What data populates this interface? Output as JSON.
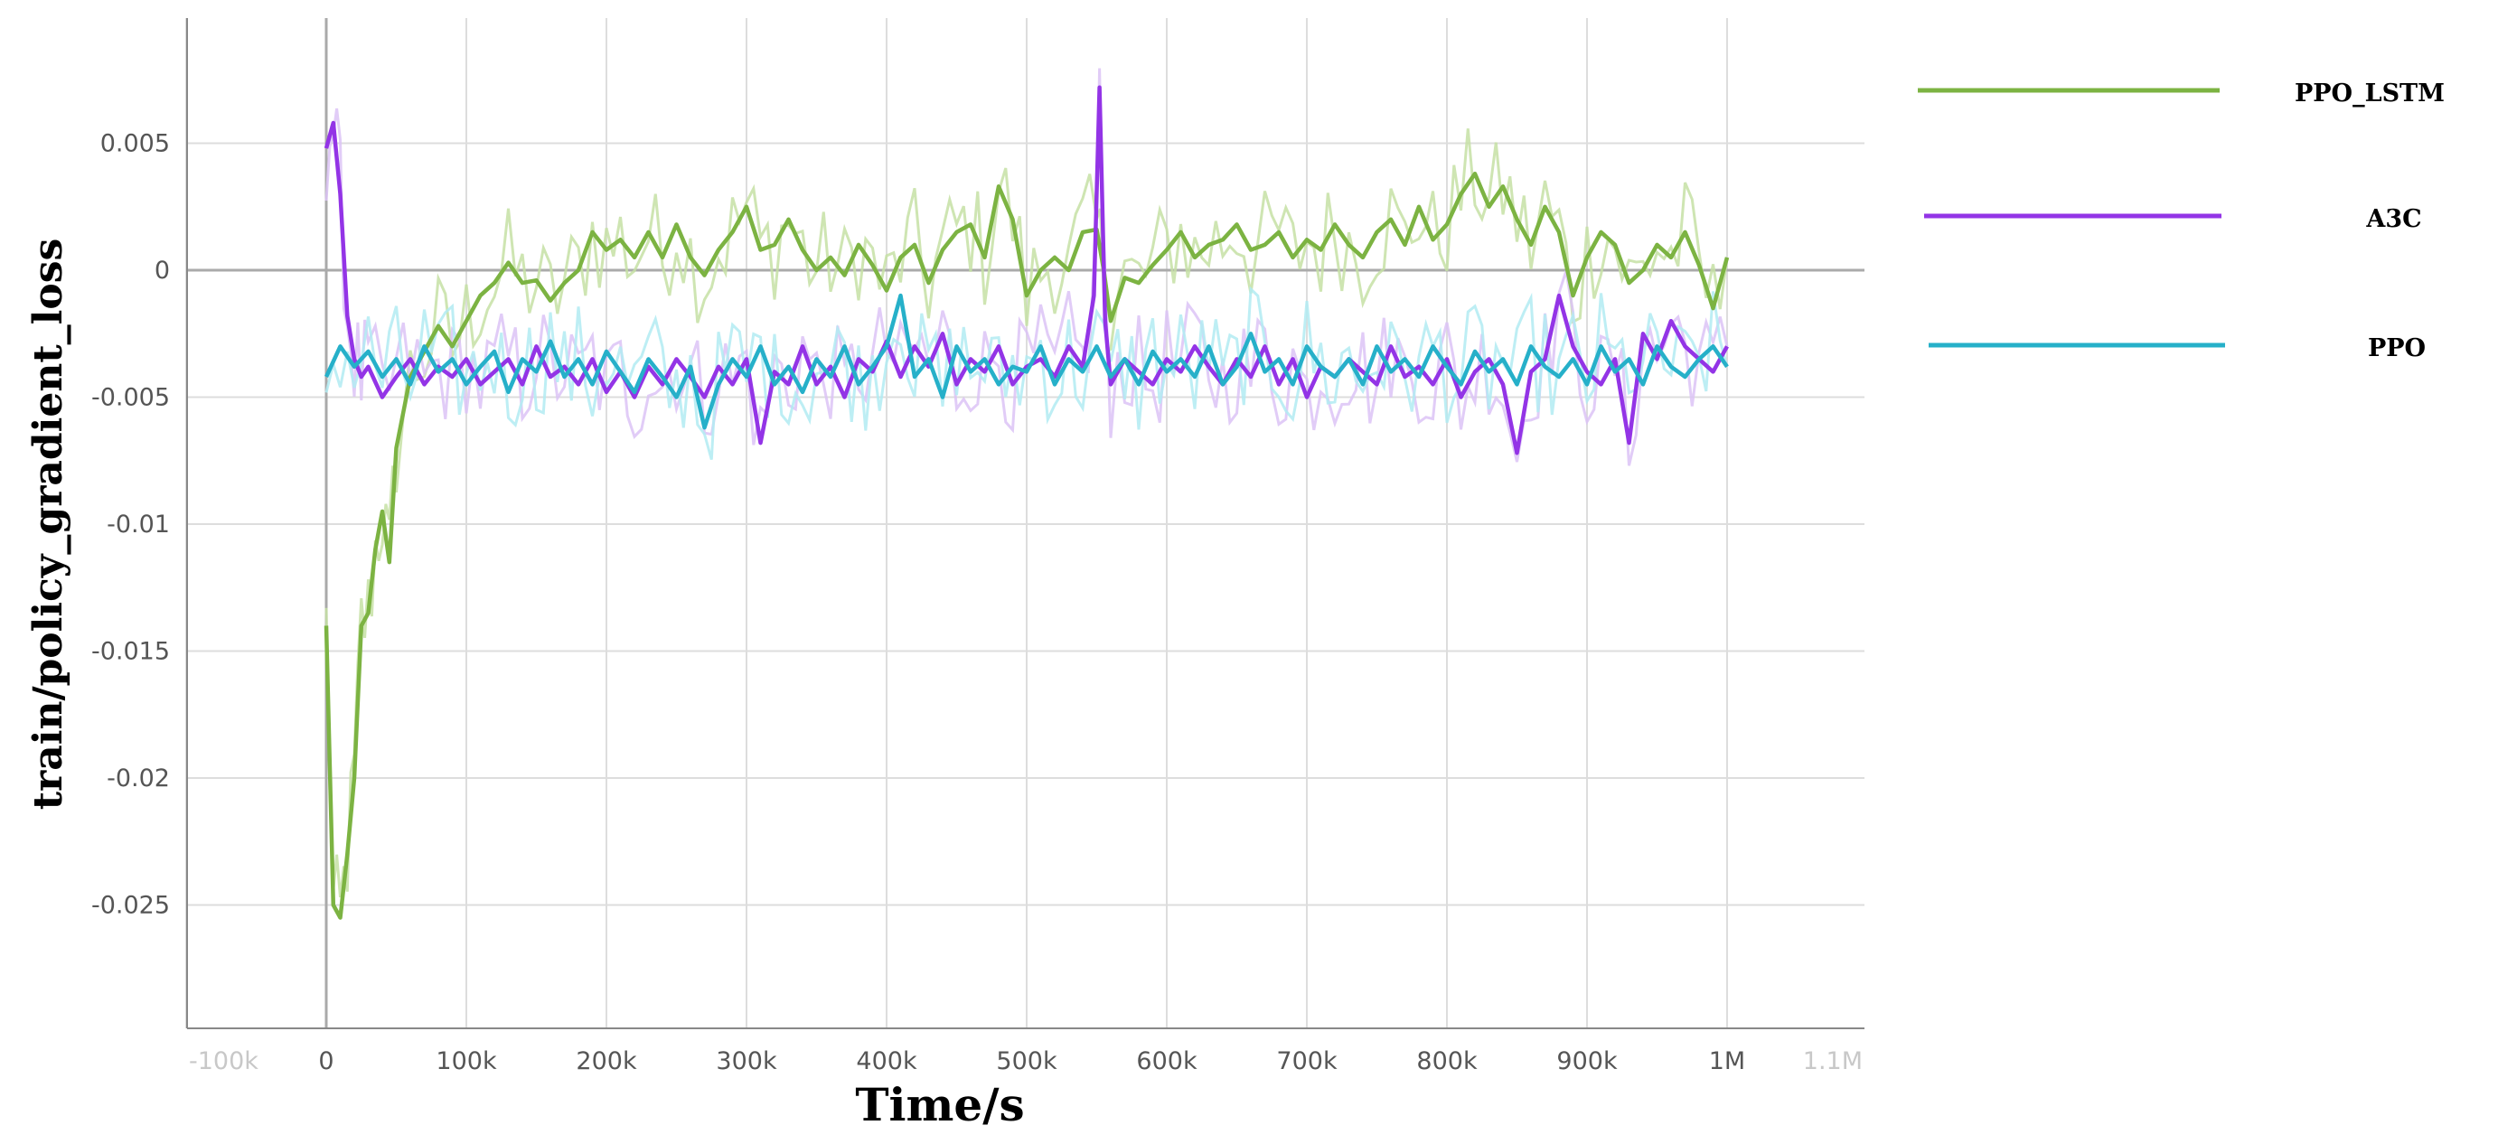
{
  "chart_data": {
    "type": "line",
    "title": "",
    "xlabel": "Time/s",
    "ylabel": "train/policy_gradient_loss",
    "xlim": [
      -100000,
      1100000
    ],
    "ylim": [
      -0.03,
      0.01
    ],
    "x_tick_values": [
      -100000,
      0,
      100000,
      200000,
      300000,
      400000,
      500000,
      600000,
      700000,
      800000,
      900000,
      1000000,
      1100000
    ],
    "x_tick_labels": [
      "-100k",
      "0",
      "100k",
      "200k",
      "300k",
      "400k",
      "500k",
      "600k",
      "700k",
      "800k",
      "900k",
      "1M",
      "1.1M"
    ],
    "y_tick_values": [
      0.005,
      0,
      -0.005,
      -0.01,
      -0.015,
      -0.02,
      -0.025
    ],
    "y_tick_labels": [
      "0.005",
      "0",
      "-0.005",
      "-0.01",
      "-0.015",
      "-0.02",
      "-0.025"
    ],
    "grid": true,
    "legend_position": "right",
    "series": [
      {
        "name": "PPO_LSTM",
        "color": "#7cb342",
        "raw_color": "#c5e1a5",
        "x": [
          0,
          5000,
          10000,
          15000,
          20000,
          25000,
          30000,
          35000,
          40000,
          45000,
          50000,
          60000,
          70000,
          80000,
          90000,
          100000,
          110000,
          120000,
          130000,
          140000,
          150000,
          160000,
          170000,
          180000,
          190000,
          200000,
          210000,
          220000,
          230000,
          240000,
          250000,
          260000,
          270000,
          280000,
          290000,
          300000,
          310000,
          320000,
          330000,
          340000,
          350000,
          360000,
          370000,
          380000,
          390000,
          400000,
          410000,
          420000,
          430000,
          440000,
          450000,
          460000,
          470000,
          480000,
          490000,
          500000,
          510000,
          520000,
          530000,
          540000,
          550000,
          555000,
          560000,
          570000,
          580000,
          590000,
          600000,
          610000,
          620000,
          630000,
          640000,
          650000,
          660000,
          670000,
          680000,
          690000,
          700000,
          710000,
          720000,
          730000,
          740000,
          750000,
          760000,
          770000,
          780000,
          790000,
          800000,
          810000,
          820000,
          830000,
          840000,
          850000,
          860000,
          870000,
          880000,
          890000,
          900000,
          910000,
          920000,
          930000,
          940000,
          950000,
          960000,
          970000,
          980000,
          990000,
          1000000
        ],
        "values": [
          -0.014,
          -0.025,
          -0.0255,
          -0.023,
          -0.02,
          -0.014,
          -0.0135,
          -0.011,
          -0.0095,
          -0.0115,
          -0.007,
          -0.0042,
          -0.0032,
          -0.0022,
          -0.003,
          -0.002,
          -0.001,
          -0.0005,
          0.0003,
          -0.0005,
          -0.0004,
          -0.0012,
          -0.0005,
          0.0,
          0.0015,
          0.0008,
          0.0012,
          0.0005,
          0.0015,
          0.0005,
          0.0018,
          0.0005,
          -0.0002,
          0.0008,
          0.0015,
          0.0025,
          0.0008,
          0.001,
          0.002,
          0.0008,
          0.0,
          0.0005,
          -0.0002,
          0.001,
          0.0002,
          -0.0008,
          0.0005,
          0.001,
          -0.0005,
          0.0008,
          0.0015,
          0.0018,
          0.0005,
          0.0033,
          0.002,
          -0.001,
          0.0,
          0.0005,
          0.0,
          0.0015,
          0.0016,
          0.0,
          -0.002,
          -0.0003,
          -0.0005,
          0.0002,
          0.0008,
          0.0015,
          0.0005,
          0.001,
          0.0012,
          0.0018,
          0.0008,
          0.001,
          0.0015,
          0.0005,
          0.0012,
          0.0008,
          0.0018,
          0.001,
          0.0005,
          0.0015,
          0.002,
          0.001,
          0.0025,
          0.0012,
          0.0018,
          0.003,
          0.0038,
          0.0025,
          0.0033,
          0.002,
          0.001,
          0.0025,
          0.0015,
          -0.001,
          0.0005,
          0.0015,
          0.001,
          -0.0005,
          0.0,
          0.001,
          0.0005,
          0.0015,
          0.0002,
          -0.0015,
          0.0005
        ]
      },
      {
        "name": "A3C",
        "color": "#9334e6",
        "raw_color": "#dcc3f6",
        "x": [
          0,
          5000,
          10000,
          15000,
          20000,
          25000,
          30000,
          40000,
          50000,
          60000,
          70000,
          80000,
          90000,
          100000,
          110000,
          120000,
          130000,
          140000,
          150000,
          160000,
          170000,
          180000,
          190000,
          200000,
          210000,
          220000,
          230000,
          240000,
          250000,
          260000,
          270000,
          280000,
          290000,
          300000,
          310000,
          320000,
          330000,
          340000,
          350000,
          360000,
          370000,
          380000,
          390000,
          400000,
          410000,
          420000,
          430000,
          440000,
          450000,
          460000,
          470000,
          480000,
          490000,
          500000,
          510000,
          520000,
          530000,
          540000,
          548000,
          552000,
          556000,
          560000,
          570000,
          580000,
          590000,
          600000,
          610000,
          620000,
          630000,
          640000,
          650000,
          660000,
          670000,
          680000,
          690000,
          700000,
          710000,
          720000,
          730000,
          740000,
          750000,
          760000,
          770000,
          780000,
          790000,
          800000,
          810000,
          820000,
          830000,
          840000,
          850000,
          860000,
          870000,
          880000,
          890000,
          900000,
          910000,
          920000,
          930000,
          940000,
          950000,
          960000,
          970000,
          980000,
          990000,
          1000000
        ],
        "values": [
          0.0048,
          0.0058,
          0.003,
          -0.0018,
          -0.0035,
          -0.0042,
          -0.0038,
          -0.005,
          -0.0042,
          -0.0035,
          -0.0045,
          -0.0038,
          -0.0042,
          -0.0035,
          -0.0045,
          -0.004,
          -0.0035,
          -0.0045,
          -0.003,
          -0.0042,
          -0.0038,
          -0.0045,
          -0.0035,
          -0.0048,
          -0.004,
          -0.005,
          -0.0038,
          -0.0045,
          -0.0035,
          -0.0042,
          -0.005,
          -0.0038,
          -0.0045,
          -0.0035,
          -0.0068,
          -0.004,
          -0.0045,
          -0.003,
          -0.0045,
          -0.0038,
          -0.005,
          -0.0035,
          -0.004,
          -0.0028,
          -0.0042,
          -0.003,
          -0.0038,
          -0.0025,
          -0.0045,
          -0.0035,
          -0.004,
          -0.003,
          -0.0045,
          -0.0038,
          -0.0035,
          -0.0042,
          -0.003,
          -0.0038,
          -0.001,
          0.0072,
          -0.002,
          -0.0045,
          -0.0035,
          -0.004,
          -0.0045,
          -0.0035,
          -0.004,
          -0.003,
          -0.0038,
          -0.0045,
          -0.0035,
          -0.0042,
          -0.003,
          -0.0045,
          -0.0035,
          -0.005,
          -0.0038,
          -0.0042,
          -0.0035,
          -0.004,
          -0.0045,
          -0.003,
          -0.0042,
          -0.0038,
          -0.0045,
          -0.0035,
          -0.005,
          -0.004,
          -0.0035,
          -0.0045,
          -0.0072,
          -0.004,
          -0.0035,
          -0.001,
          -0.003,
          -0.004,
          -0.0045,
          -0.0035,
          -0.0068,
          -0.0025,
          -0.0035,
          -0.002,
          -0.003,
          -0.0035,
          -0.004,
          -0.003
        ]
      },
      {
        "name": "PPO",
        "color": "#26b0c9",
        "raw_color": "#b2ebf2",
        "x": [
          0,
          10000,
          20000,
          30000,
          40000,
          50000,
          60000,
          70000,
          80000,
          90000,
          100000,
          110000,
          120000,
          130000,
          140000,
          150000,
          160000,
          170000,
          180000,
          190000,
          200000,
          210000,
          220000,
          230000,
          240000,
          250000,
          260000,
          270000,
          280000,
          290000,
          300000,
          310000,
          320000,
          330000,
          340000,
          350000,
          360000,
          370000,
          380000,
          390000,
          400000,
          410000,
          420000,
          430000,
          440000,
          450000,
          460000,
          470000,
          480000,
          490000,
          500000,
          510000,
          520000,
          530000,
          540000,
          550000,
          560000,
          570000,
          580000,
          590000,
          600000,
          610000,
          620000,
          630000,
          640000,
          650000,
          660000,
          670000,
          680000,
          690000,
          700000,
          710000,
          720000,
          730000,
          740000,
          750000,
          760000,
          770000,
          780000,
          790000,
          800000,
          810000,
          820000,
          830000,
          840000,
          850000,
          860000,
          870000,
          880000,
          890000,
          900000,
          910000,
          920000,
          930000,
          940000,
          950000,
          960000,
          970000,
          980000,
          990000,
          1000000
        ],
        "values": [
          -0.0042,
          -0.003,
          -0.0038,
          -0.0032,
          -0.0042,
          -0.0035,
          -0.0045,
          -0.003,
          -0.004,
          -0.0035,
          -0.0045,
          -0.0038,
          -0.0032,
          -0.0048,
          -0.0035,
          -0.004,
          -0.0028,
          -0.0042,
          -0.0035,
          -0.0045,
          -0.0032,
          -0.004,
          -0.0048,
          -0.0035,
          -0.0042,
          -0.005,
          -0.0038,
          -0.0062,
          -0.0045,
          -0.0035,
          -0.0042,
          -0.003,
          -0.0045,
          -0.0038,
          -0.0048,
          -0.0035,
          -0.0042,
          -0.003,
          -0.0045,
          -0.0038,
          -0.003,
          -0.001,
          -0.0042,
          -0.0035,
          -0.005,
          -0.003,
          -0.004,
          -0.0035,
          -0.0045,
          -0.0038,
          -0.004,
          -0.003,
          -0.0045,
          -0.0035,
          -0.004,
          -0.003,
          -0.0042,
          -0.0035,
          -0.0045,
          -0.0032,
          -0.004,
          -0.0035,
          -0.0042,
          -0.003,
          -0.0045,
          -0.0038,
          -0.0025,
          -0.004,
          -0.0035,
          -0.0045,
          -0.003,
          -0.0038,
          -0.0042,
          -0.0035,
          -0.0045,
          -0.003,
          -0.004,
          -0.0035,
          -0.0042,
          -0.003,
          -0.0038,
          -0.0045,
          -0.0032,
          -0.004,
          -0.0035,
          -0.0045,
          -0.003,
          -0.0038,
          -0.0042,
          -0.0035,
          -0.0045,
          -0.003,
          -0.004,
          -0.0035,
          -0.0045,
          -0.003,
          -0.0038,
          -0.0042,
          -0.0035,
          -0.003,
          -0.0038
        ]
      }
    ]
  }
}
